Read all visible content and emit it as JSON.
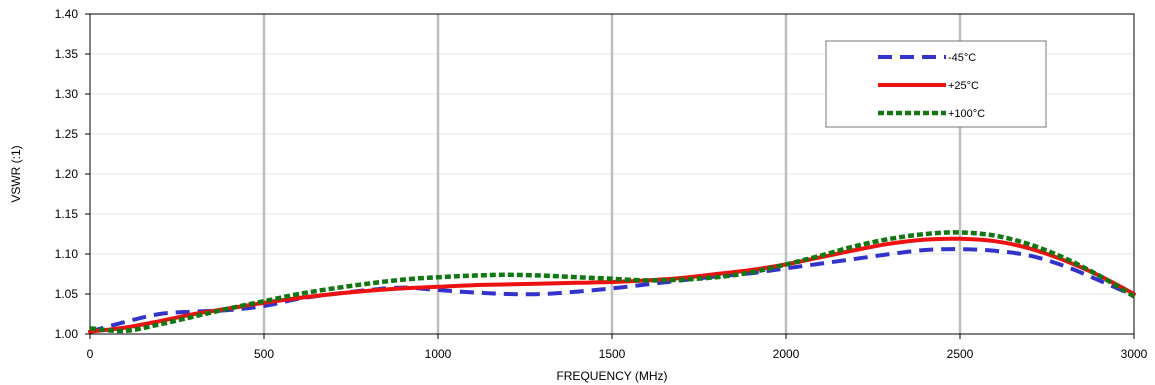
{
  "chart_data": {
    "type": "line",
    "title": "",
    "xlabel": "FREQUENCY  (MHz)",
    "ylabel": "VSWR (:1)",
    "xlim": [
      0,
      3000
    ],
    "ylim": [
      1.0,
      1.4
    ],
    "x_ticks": [
      "0",
      "500",
      "1000",
      "1500",
      "2000",
      "2500",
      "3000"
    ],
    "y_ticks": [
      "1.00",
      "1.05",
      "1.10",
      "1.15",
      "1.20",
      "1.25",
      "1.30",
      "1.35",
      "1.40"
    ],
    "x_tick_values": [
      0,
      500,
      1000,
      1500,
      2000,
      2500,
      3000
    ],
    "y_tick_values": [
      1.0,
      1.05,
      1.1,
      1.15,
      1.2,
      1.25,
      1.3,
      1.35,
      1.4
    ],
    "grid": {
      "vertical": true,
      "horizontal": true
    },
    "legend_position": "top-right",
    "series": [
      {
        "name": "-45°C",
        "color": "#3333cc",
        "style": "dashed",
        "x": [
          0,
          100,
          200,
          300,
          400,
          500,
          600,
          700,
          800,
          900,
          1000,
          1100,
          1200,
          1300,
          1400,
          1500,
          1600,
          1700,
          1800,
          1900,
          2000,
          2100,
          2200,
          2300,
          2400,
          2500,
          2600,
          2700,
          2800,
          2900,
          3000
        ],
        "values": [
          1.003,
          1.015,
          1.025,
          1.028,
          1.03,
          1.035,
          1.044,
          1.05,
          1.055,
          1.058,
          1.055,
          1.052,
          1.05,
          1.05,
          1.053,
          1.057,
          1.062,
          1.067,
          1.072,
          1.076,
          1.082,
          1.088,
          1.094,
          1.1,
          1.105,
          1.106,
          1.104,
          1.098,
          1.085,
          1.067,
          1.048
        ]
      },
      {
        "name": "+25°C",
        "color": "#ee1111",
        "style": "solid",
        "x": [
          0,
          100,
          200,
          300,
          400,
          500,
          600,
          700,
          800,
          900,
          1000,
          1100,
          1200,
          1300,
          1400,
          1500,
          1600,
          1700,
          1800,
          1900,
          2000,
          2100,
          2200,
          2300,
          2400,
          2500,
          2600,
          2700,
          2800,
          2900,
          3000
        ],
        "values": [
          1.003,
          1.008,
          1.016,
          1.025,
          1.032,
          1.039,
          1.045,
          1.05,
          1.054,
          1.057,
          1.059,
          1.061,
          1.062,
          1.063,
          1.064,
          1.065,
          1.067,
          1.07,
          1.075,
          1.08,
          1.087,
          1.096,
          1.105,
          1.113,
          1.118,
          1.119,
          1.116,
          1.107,
          1.092,
          1.073,
          1.05
        ]
      },
      {
        "name": "+100°C",
        "color": "#117711",
        "style": "dotted",
        "x": [
          0,
          100,
          200,
          300,
          400,
          500,
          600,
          700,
          800,
          900,
          1000,
          1100,
          1200,
          1300,
          1400,
          1500,
          1600,
          1700,
          1800,
          1900,
          2000,
          2100,
          2200,
          2300,
          2400,
          2500,
          2600,
          2700,
          2800,
          2900,
          3000
        ],
        "values": [
          1.007,
          1.004,
          1.012,
          1.022,
          1.032,
          1.041,
          1.05,
          1.057,
          1.063,
          1.068,
          1.071,
          1.073,
          1.074,
          1.073,
          1.071,
          1.069,
          1.067,
          1.068,
          1.071,
          1.077,
          1.087,
          1.098,
          1.11,
          1.119,
          1.125,
          1.127,
          1.123,
          1.112,
          1.095,
          1.073,
          1.047
        ]
      }
    ]
  }
}
